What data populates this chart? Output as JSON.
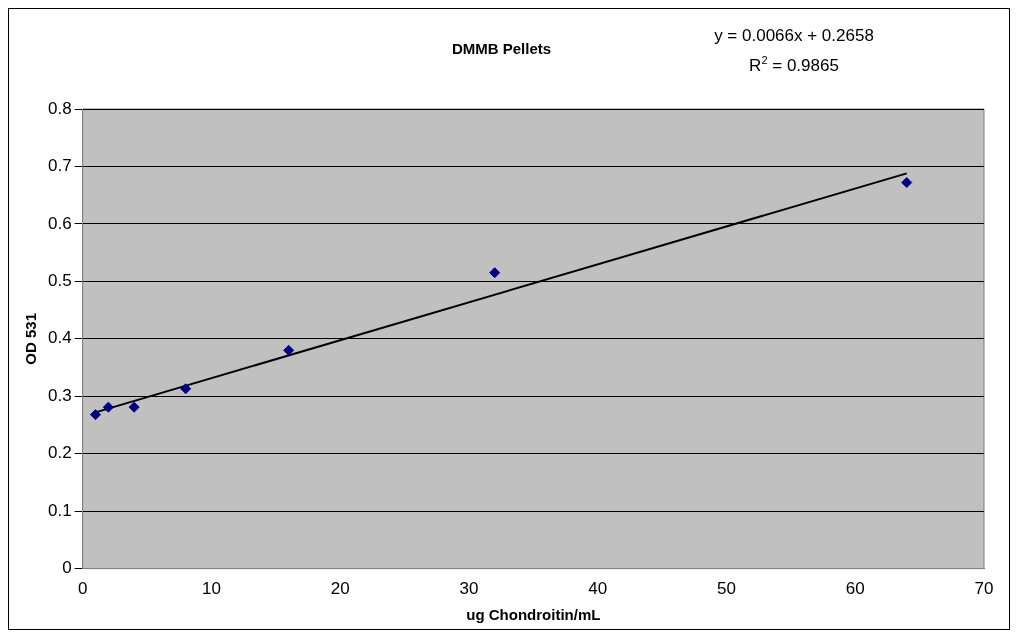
{
  "chart_data": {
    "type": "scatter",
    "title": "DMMB Pellets",
    "xlabel": "ug Chondroitin/mL",
    "ylabel": "OD 531",
    "annotations": [
      "y = 0.0066x + 0.2658",
      "R$^{2}$ = 0.9865"
    ],
    "series": [
      {
        "type": "scatter",
        "color": "#000080",
        "x": [
          1,
          2,
          4,
          8,
          16,
          32,
          64
        ],
        "values": [
          0.268,
          0.281,
          0.281,
          0.313,
          0.38,
          0.515,
          0.672
        ],
        "marker": "diamond"
      },
      {
        "type": "line",
        "color": "#000000",
        "x": [
          1,
          64
        ],
        "values": [
          0.272,
          0.688
        ],
        "marker": "none"
      }
    ],
    "xlim": [
      0,
      70
    ],
    "xticks": [
      0,
      10,
      20,
      30,
      40,
      50,
      60,
      70
    ],
    "ylim": [
      0,
      0.8
    ],
    "yticks": [
      0,
      0.1,
      0.2,
      0.3,
      0.4,
      0.5,
      0.6,
      0.7,
      0.8
    ],
    "grid": "y",
    "legend": false
  }
}
